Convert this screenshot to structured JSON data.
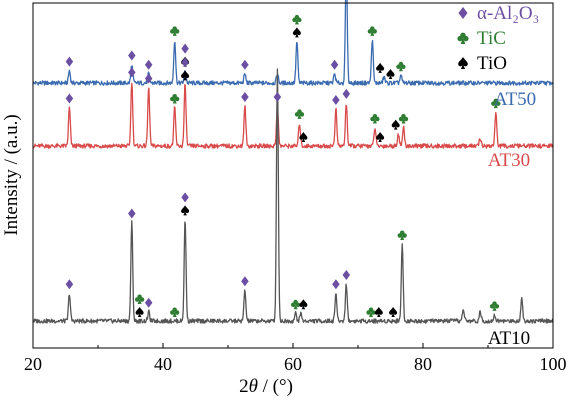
{
  "chart_data": {
    "type": "line",
    "title": "",
    "xlabel": {
      "prefix": "2",
      "symbol": "θ",
      "unit": " / (°)"
    },
    "ylabel": "Intensity / (a.u.)",
    "xlim": [
      20,
      100
    ],
    "xticks": [
      20,
      40,
      60,
      80,
      100
    ],
    "yticks_shown": false,
    "grid": false,
    "legend": {
      "placement": "top-right",
      "entries": [
        {
          "marker": "diamond",
          "label": "α-Al₂O₃",
          "color": "#6b4fa3"
        },
        {
          "marker": "club",
          "label": "TiC",
          "color": "#2e7d32"
        },
        {
          "marker": "spade",
          "label": "TiO",
          "color": "#000000"
        }
      ]
    },
    "series": [
      {
        "name": "AT50",
        "color": "#3a6bb0",
        "baseline": 0.0,
        "peaks": [
          {
            "x": 25.6,
            "y": 0.8
          },
          {
            "x": 35.2,
            "y": 1.2
          },
          {
            "x": 37.8,
            "y": 0.6
          },
          {
            "x": 41.8,
            "y": 2.8
          },
          {
            "x": 43.4,
            "y": 0.8
          },
          {
            "x": 52.6,
            "y": 0.6
          },
          {
            "x": 57.6,
            "y": 0.6
          },
          {
            "x": 60.6,
            "y": 2.7
          },
          {
            "x": 66.4,
            "y": 0.6
          },
          {
            "x": 68.2,
            "y": 7.5
          },
          {
            "x": 72.2,
            "y": 2.8
          },
          {
            "x": 74.0,
            "y": 0.4
          },
          {
            "x": 76.6,
            "y": 0.5
          }
        ],
        "markers": [
          {
            "type": "diamond",
            "x": 25.6
          },
          {
            "type": "diamond",
            "x": 35.2
          },
          {
            "type": "diamond",
            "x": 37.8
          },
          {
            "type": "club",
            "x": 41.8
          },
          {
            "type": "spade",
            "x": 43.4
          },
          {
            "type": "diamond",
            "x": 43.4
          },
          {
            "type": "diamond",
            "x": 52.6
          },
          {
            "type": "spade",
            "x": 60.6
          },
          {
            "type": "club",
            "x": 60.6
          },
          {
            "type": "diamond",
            "x": 66.4
          },
          {
            "type": "club",
            "x": 72.2
          },
          {
            "type": "spade",
            "x": 73.4
          },
          {
            "type": "spade",
            "x": 75.0
          },
          {
            "type": "club",
            "x": 76.6
          }
        ]
      },
      {
        "name": "AT30",
        "color": "#d94a4a",
        "baseline": 0.0,
        "peaks": [
          {
            "x": 25.6,
            "y": 2.5
          },
          {
            "x": 35.2,
            "y": 4.2
          },
          {
            "x": 37.8,
            "y": 3.8
          },
          {
            "x": 41.8,
            "y": 2.5
          },
          {
            "x": 43.4,
            "y": 4.0
          },
          {
            "x": 52.6,
            "y": 2.6
          },
          {
            "x": 57.6,
            "y": 2.6
          },
          {
            "x": 61.0,
            "y": 1.5
          },
          {
            "x": 66.6,
            "y": 2.4
          },
          {
            "x": 68.2,
            "y": 2.8
          },
          {
            "x": 72.6,
            "y": 1.2
          },
          {
            "x": 76.2,
            "y": 0.8
          },
          {
            "x": 77.0,
            "y": 1.2
          },
          {
            "x": 88.8,
            "y": 0.5
          },
          {
            "x": 91.2,
            "y": 2.2
          }
        ],
        "markers": [
          {
            "type": "diamond",
            "x": 25.6
          },
          {
            "type": "diamond",
            "x": 35.2
          },
          {
            "type": "diamond",
            "x": 37.8
          },
          {
            "type": "club",
            "x": 41.8
          },
          {
            "type": "spade",
            "x": 43.4
          },
          {
            "type": "diamond",
            "x": 43.4
          },
          {
            "type": "diamond",
            "x": 52.6
          },
          {
            "type": "diamond",
            "x": 57.6
          },
          {
            "type": "club",
            "x": 61.0
          },
          {
            "type": "spade",
            "x": 61.6
          },
          {
            "type": "diamond",
            "x": 66.6
          },
          {
            "type": "diamond",
            "x": 68.2
          },
          {
            "type": "club",
            "x": 72.6
          },
          {
            "type": "spade",
            "x": 73.4
          },
          {
            "type": "spade",
            "x": 75.8
          },
          {
            "type": "club",
            "x": 77.0
          },
          {
            "type": "club",
            "x": 91.2
          }
        ]
      },
      {
        "name": "AT10",
        "color": "#555555",
        "baseline": 0.0,
        "peaks": [
          {
            "x": 25.6,
            "y": 1.8
          },
          {
            "x": 35.2,
            "y": 6.4
          },
          {
            "x": 37.8,
            "y": 0.6
          },
          {
            "x": 43.4,
            "y": 6.6
          },
          {
            "x": 52.6,
            "y": 2.0
          },
          {
            "x": 57.6,
            "y": 16.4
          },
          {
            "x": 60.4,
            "y": 0.5
          },
          {
            "x": 61.2,
            "y": 0.5
          },
          {
            "x": 66.6,
            "y": 1.8
          },
          {
            "x": 68.2,
            "y": 2.4
          },
          {
            "x": 76.8,
            "y": 5.0
          },
          {
            "x": 86.2,
            "y": 0.8
          },
          {
            "x": 88.8,
            "y": 0.6
          },
          {
            "x": 91.0,
            "y": 0.4
          },
          {
            "x": 95.2,
            "y": 1.5
          }
        ],
        "markers": [
          {
            "type": "diamond",
            "x": 25.6
          },
          {
            "type": "diamond",
            "x": 35.2
          },
          {
            "type": "spade",
            "x": 36.4
          },
          {
            "type": "club",
            "x": 36.4
          },
          {
            "type": "diamond",
            "x": 37.8
          },
          {
            "type": "club",
            "x": 41.8
          },
          {
            "type": "spade",
            "x": 43.4
          },
          {
            "type": "diamond",
            "x": 43.4
          },
          {
            "type": "diamond",
            "x": 52.6
          },
          {
            "type": "club",
            "x": 60.4
          },
          {
            "type": "spade",
            "x": 61.6
          },
          {
            "type": "diamond",
            "x": 66.6
          },
          {
            "type": "diamond",
            "x": 68.2
          },
          {
            "type": "club",
            "x": 72.0
          },
          {
            "type": "spade",
            "x": 73.2
          },
          {
            "type": "spade",
            "x": 75.4
          },
          {
            "type": "club",
            "x": 76.8
          },
          {
            "type": "club",
            "x": 91.0
          }
        ]
      }
    ]
  }
}
